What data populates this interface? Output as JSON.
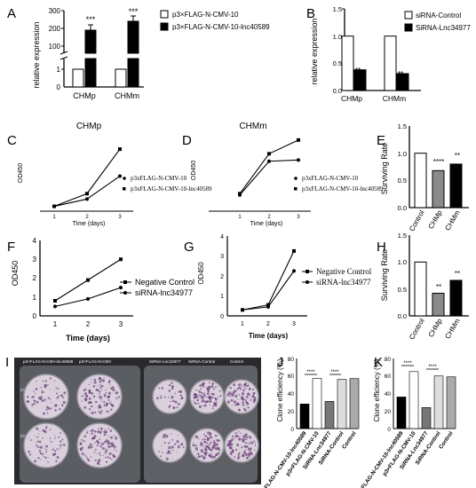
{
  "panels": {
    "A": {
      "letter": "A",
      "ylabel": "relative expression",
      "legend": [
        "p3×FLAG-N-CMV-10",
        "p3×FLAG-N-CMV-10-lnc40589"
      ],
      "ticks_upper": [
        "300",
        "200",
        "100"
      ],
      "ticks_lower": [
        "1",
        "0"
      ],
      "categories": [
        "CHMp",
        "CHMm"
      ],
      "stars": [
        "***",
        "***"
      ]
    },
    "B": {
      "letter": "B",
      "ylabel": "relative expression",
      "legend": [
        "siRNA-Control",
        "SiRNA-Lnc34977"
      ],
      "ticks": [
        "1.5",
        "1.0",
        "0.5",
        "0.0"
      ],
      "categories": [
        "CHMp",
        "CHMm"
      ],
      "stars": [
        "**",
        "**"
      ]
    },
    "C": {
      "letter": "C",
      "title": "CHMp",
      "ylabel": "OD450",
      "xlabel": "Time (days)",
      "legend": [
        "p3xFLAG-N-CMV-10",
        "p3xFLAG-N-CMV-10-lnc40589"
      ],
      "xticks": [
        "1",
        "2",
        "3"
      ]
    },
    "D": {
      "letter": "D",
      "title": "CHMm",
      "ylabel": "OD450",
      "xlabel": "Time (days)",
      "legend": [
        "p3xFLAG-N-CMV-10",
        "p3xFLAG-N-CMV-10-lnc40589"
      ],
      "xticks": [
        "1",
        "2",
        "3"
      ]
    },
    "E": {
      "letter": "E",
      "ylabel": "Surviving Rate",
      "ticks": [
        "1.5",
        "1.0",
        "0.5",
        "0.0"
      ],
      "categories": [
        "Control",
        "CHMp",
        "CHMm"
      ],
      "stars": [
        "",
        "****",
        "**"
      ]
    },
    "F": {
      "letter": "F",
      "ylabel": "OD450",
      "xlabel": "Time (days)",
      "yticks": [
        "4",
        "3",
        "2",
        "1",
        "0"
      ],
      "xticks": [
        "1",
        "2",
        "3"
      ],
      "legend": [
        "Negative Control",
        "siRNA-lnc34977"
      ]
    },
    "G": {
      "letter": "G",
      "ylabel": "OD450",
      "xlabel": "Time (days)",
      "yticks": [
        "4",
        "3",
        "2",
        "1",
        "0"
      ],
      "xticks": [
        "1",
        "2",
        "3"
      ],
      "legend": [
        "Negative Control",
        "siRNA-lnc34977"
      ]
    },
    "H": {
      "letter": "H",
      "ylabel": "Surviving Rate",
      "ticks": [
        "1.5",
        "1.0",
        "0.5",
        "0.0"
      ],
      "categories": [
        "Control",
        "CHMp",
        "CHMm"
      ],
      "stars": [
        "",
        "**",
        "**"
      ]
    },
    "I": {
      "letter": "I",
      "col_labels": [
        "p3×FLAG-N-CMV-lnc40589",
        "p3×FLAG-N-CMV",
        "SiRNA-Lnc34977",
        "SiRNA-Control",
        "Control"
      ],
      "row_labels": [
        "CHMp",
        "CHMm"
      ]
    },
    "J": {
      "letter": "J",
      "ylabel": "Clone efficiency (%)",
      "ticks": [
        "80",
        "60",
        "40",
        "20",
        "0"
      ],
      "categories": [
        "p3×FLAG-N-CMV-10-lnc40589",
        "p3×FLAG-N-CMV-10",
        "SiRNA-Lnc34977",
        "SiRNA-Control",
        "Control"
      ],
      "sig": [
        "****",
        "****"
      ]
    },
    "K": {
      "letter": "K",
      "ylabel": "Clone efficiency (%)",
      "ticks": [
        "80",
        "60",
        "40",
        "20",
        "0"
      ],
      "categories": [
        "p3×FLAG-N-CMV-10-lnc40589",
        "p3×FLAG-N-CMV-10",
        "SiRNA-Lnc34977",
        "SiRNA-Control",
        "Control"
      ],
      "sig": [
        "****",
        "****"
      ]
    }
  },
  "chart_data": [
    {
      "id": "A",
      "type": "bar",
      "categories": [
        "CHMp",
        "CHMm"
      ],
      "series": [
        {
          "name": "p3×FLAG-N-CMV-10",
          "values": [
            1,
            1
          ]
        },
        {
          "name": "p3×FLAG-N-CMV-10-lnc40589",
          "values": [
            228,
            282
          ]
        }
      ],
      "ylabel": "relative expression",
      "ylim": [
        0,
        300
      ],
      "axis_break": true,
      "legend": "top-right"
    },
    {
      "id": "B",
      "type": "bar",
      "categories": [
        "CHMp",
        "CHMm"
      ],
      "series": [
        {
          "name": "siRNA-Control",
          "values": [
            1.0,
            1.0
          ]
        },
        {
          "name": "SiRNA-Lnc34977",
          "values": [
            0.38,
            0.31
          ]
        }
      ],
      "ylabel": "relative expression",
      "ylim": [
        0,
        1.5
      ],
      "legend": "top-right"
    },
    {
      "id": "C",
      "type": "line",
      "title": "CHMp",
      "x": [
        1,
        2,
        3
      ],
      "series": [
        {
          "name": "p3xFLAG-N-CMV-10",
          "values": [
            0.18,
            0.45,
            1.3
          ]
        },
        {
          "name": "p3xFLAG-N-CMV-10-lnc40589",
          "values": [
            0.18,
            0.65,
            2.3
          ]
        }
      ],
      "xlabel": "Time (days)",
      "ylabel": "OD450",
      "ylim": [
        0,
        2.5
      ]
    },
    {
      "id": "D",
      "type": "line",
      "title": "CHMm",
      "x": [
        1,
        2,
        3
      ],
      "series": [
        {
          "name": "p3xFLAG-N-CMV-10",
          "values": [
            0.65,
            2.0,
            2.05
          ]
        },
        {
          "name": "p3xFLAG-N-CMV-10-lnc40589",
          "values": [
            0.7,
            2.3,
            2.85
          ]
        }
      ],
      "xlabel": "Time (days)",
      "ylabel": "OD450",
      "ylim": [
        0,
        3.2
      ]
    },
    {
      "id": "E",
      "type": "bar",
      "categories": [
        "Control",
        "CHMp",
        "CHMm"
      ],
      "values": [
        1.0,
        0.68,
        0.8
      ],
      "ylabel": "Surviving Rate",
      "ylim": [
        0,
        1.5
      ]
    },
    {
      "id": "F",
      "type": "line",
      "x": [
        1,
        2,
        3
      ],
      "series": [
        {
          "name": "Negative Control",
          "values": [
            0.8,
            1.9,
            3.0
          ]
        },
        {
          "name": "siRNA-lnc34977",
          "values": [
            0.5,
            0.9,
            1.5
          ]
        }
      ],
      "xlabel": "Time (days)",
      "ylabel": "OD450",
      "ylim": [
        0,
        4
      ]
    },
    {
      "id": "G",
      "type": "line",
      "x": [
        1,
        2,
        3
      ],
      "series": [
        {
          "name": "Negative Control",
          "values": [
            0.3,
            0.55,
            3.25
          ]
        },
        {
          "name": "siRNA-lnc34977",
          "values": [
            0.3,
            0.45,
            2.25
          ]
        }
      ],
      "xlabel": "Time (days)",
      "ylabel": "OD450",
      "ylim": [
        0,
        4
      ]
    },
    {
      "id": "H",
      "type": "bar",
      "categories": [
        "Control",
        "CHMp",
        "CHMm"
      ],
      "values": [
        1.0,
        0.42,
        0.66
      ],
      "ylabel": "Surviving Rate",
      "ylim": [
        0,
        1.5
      ]
    },
    {
      "id": "J",
      "type": "bar",
      "categories": [
        "p3×FLAG-N-CMV-10-lnc40589",
        "p3×FLAG-N-CMV-10",
        "SiRNA-Lnc34977",
        "SiRNA-Control",
        "Control"
      ],
      "values": [
        28,
        57,
        31,
        56,
        57
      ],
      "ylabel": "Clone efficiency (%)",
      "ylim": [
        0,
        80
      ]
    },
    {
      "id": "K",
      "type": "bar",
      "categories": [
        "p3×FLAG-N-CMV-10-lnc40589",
        "p3×FLAG-N-CMV-10",
        "SiRNA-Lnc34977",
        "SiRNA-Control",
        "Control"
      ],
      "values": [
        36,
        65,
        24,
        60,
        59
      ],
      "ylabel": "Clone efficiency (%)",
      "ylim": [
        0,
        80
      ]
    }
  ]
}
